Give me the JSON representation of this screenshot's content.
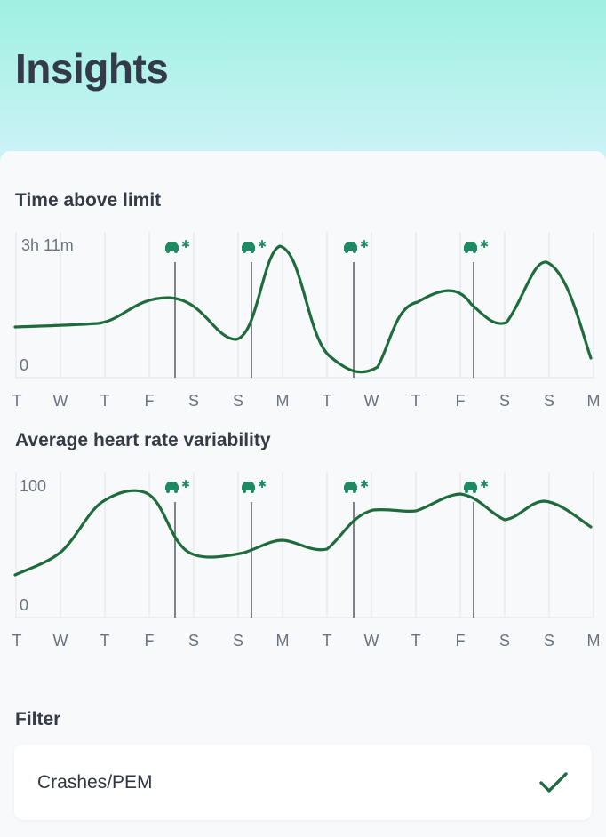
{
  "page": {
    "title": "Insights"
  },
  "charts": [
    {
      "name": "time-above-limit",
      "title": "Time above limit",
      "y_max_label": "3h 11m",
      "y_min_label": "0",
      "days": [
        "T",
        "W",
        "T",
        "F",
        "S",
        "S",
        "M",
        "T",
        "W",
        "T",
        "F",
        "S",
        "S",
        "M"
      ],
      "event_icon": "car-crash-icon",
      "event_color": "#1f8a61",
      "line_color": "#1e6b3c"
    },
    {
      "name": "average-hrv",
      "title": "Average heart rate variability",
      "y_max_label": "100",
      "y_min_label": "0",
      "days": [
        "T",
        "W",
        "T",
        "F",
        "S",
        "S",
        "M",
        "T",
        "W",
        "T",
        "F",
        "S",
        "S",
        "M"
      ],
      "event_icon": "car-crash-icon",
      "event_color": "#1f8a61",
      "line_color": "#1e6b3c"
    }
  ],
  "filter": {
    "title": "Filter",
    "option_label": "Crashes/PEM",
    "option_selected": true,
    "check_icon": "checkmark-icon"
  }
}
